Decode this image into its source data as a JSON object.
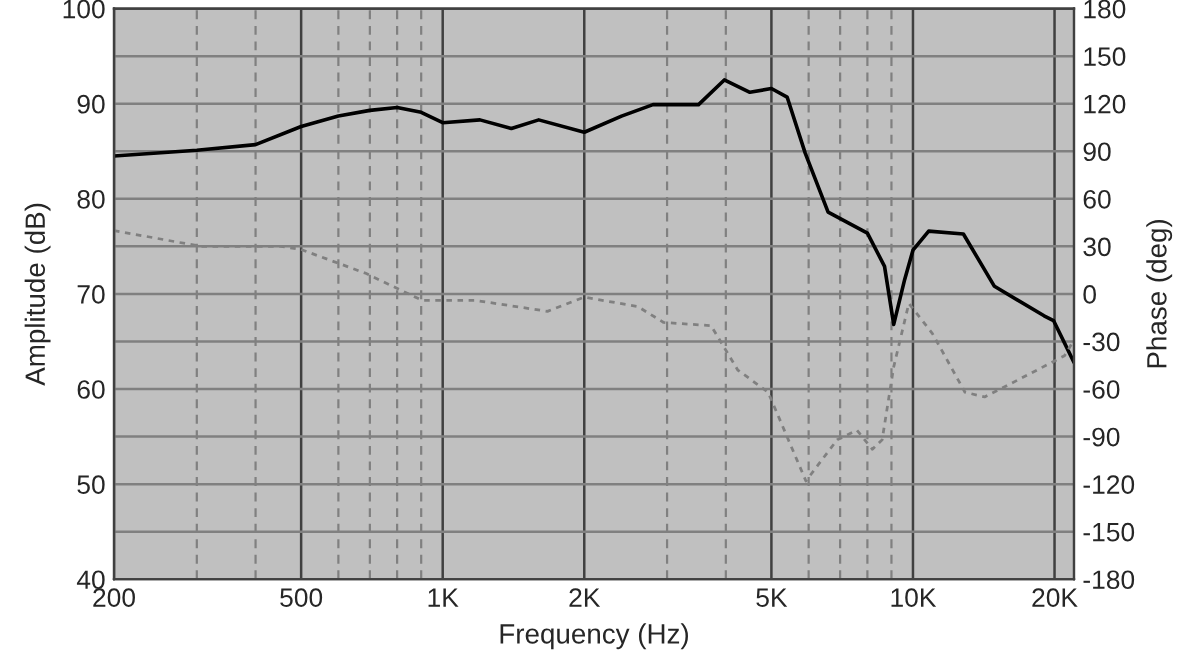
{
  "chart_data": {
    "type": "line",
    "xlabel": "Frequency (Hz)",
    "ylabel": "Amplitude (dB)",
    "y2label": "Phase (deg)",
    "log": "x",
    "grid": true,
    "legend": false,
    "xlim": [
      200,
      22000
    ],
    "xticks": [
      200,
      {
        "value": 300,
        "label": null
      },
      {
        "value": 400,
        "label": null
      },
      500,
      {
        "value": 600,
        "label": null
      },
      {
        "value": 700,
        "label": null
      },
      {
        "value": 800,
        "label": null
      },
      {
        "value": 900,
        "label": null
      },
      {
        "value": 1000,
        "label": "1K"
      },
      {
        "value": 2000,
        "label": "2K"
      },
      {
        "value": 3000,
        "label": null
      },
      {
        "value": 4000,
        "label": null
      },
      {
        "value": 5000,
        "label": "5K"
      },
      {
        "value": 6000,
        "label": null
      },
      {
        "value": 7000,
        "label": null
      },
      {
        "value": 8000,
        "label": null
      },
      {
        "value": 9000,
        "label": null
      },
      {
        "value": 10000,
        "label": "10K"
      },
      {
        "value": 20000,
        "label": "20K"
      }
    ],
    "ylim": [
      40,
      100
    ],
    "yticks": [
      40,
      {
        "value": 45,
        "label": null
      },
      50,
      {
        "value": 55,
        "label": null
      },
      60,
      {
        "value": 65,
        "label": null
      },
      70,
      {
        "value": 75,
        "label": null
      },
      80,
      {
        "value": 85,
        "label": null
      },
      90,
      {
        "value": 95,
        "label": null
      },
      100
    ],
    "y2lim": [
      -180,
      180
    ],
    "y2ticks": [
      -180,
      -150,
      -120,
      -90,
      -60,
      -30,
      0,
      30,
      60,
      90,
      120,
      150,
      180
    ],
    "series": [
      {
        "color": "#000000",
        "line_style": "solid",
        "x": [
          200,
          300,
          400,
          500,
          600,
          700,
          800,
          900,
          1000,
          1200,
          1400,
          1600,
          2000,
          2400,
          2800,
          3500,
          3970,
          4500,
          5000,
          5400,
          5900,
          6600,
          8000,
          8700,
          9100,
          9600,
          10000,
          10800,
          12800,
          14900,
          19000,
          19900,
          22000
        ],
        "values": [
          84.5,
          85.1,
          85.7,
          87.6,
          88.7,
          89.3,
          89.6,
          89.1,
          88.0,
          88.3,
          87.4,
          88.3,
          87.0,
          88.7,
          89.9,
          89.9,
          92.5,
          91.2,
          91.6,
          90.7,
          84.8,
          78.6,
          76.4,
          72.9,
          66.8,
          71.5,
          74.6,
          76.6,
          76.3,
          70.8,
          67.7,
          67.2,
          62.8
        ]
      },
      {
        "color": "#808080",
        "line_style": "dashed",
        "axis": "y2",
        "x": [
          200,
          306,
          453,
          500,
          686,
          903,
          1170,
          1670,
          2000,
          2600,
          2950,
          3720,
          4240,
          4920,
          5920,
          6900,
          7600,
          8200,
          8600,
          9100,
          9800,
          11000,
          12900,
          14200,
          17300,
          21000,
          22000
        ],
        "values": [
          40,
          30,
          30,
          28,
          13,
          -4,
          -4,
          -11,
          -2,
          -8,
          -18,
          -20,
          -48,
          -62,
          -118,
          -92,
          -86,
          -98,
          -92,
          -46,
          -6,
          -25,
          -62,
          -65,
          -52,
          -39,
          -29
        ]
      }
    ]
  }
}
